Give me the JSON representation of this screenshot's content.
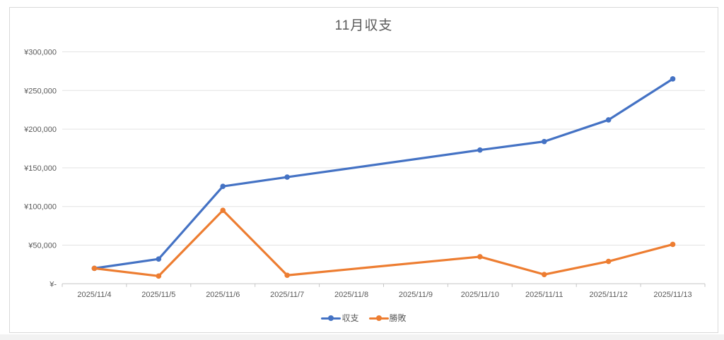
{
  "chart": {
    "title": "11月収支",
    "colors": {
      "series_balance": "#4472C4",
      "series_winloss": "#ED7D31",
      "axis_text": "#595959",
      "gridline": "#E3E3E3",
      "axis_line": "#C6C6C6",
      "frame_border": "#D9D9D9"
    }
  },
  "chart_data": {
    "type": "line",
    "title": "11月収支",
    "categories": [
      "2025/11/4",
      "2025/11/5",
      "2025/11/6",
      "2025/11/7",
      "2025/11/8",
      "2025/11/9",
      "2025/11/10",
      "2025/11/11",
      "2025/11/12",
      "2025/11/13"
    ],
    "series": [
      {
        "name": "収支",
        "color": "#4472C4",
        "values": [
          20000,
          32000,
          126000,
          138000,
          null,
          null,
          173000,
          184000,
          212000,
          265000
        ]
      },
      {
        "name": "勝敗",
        "color": "#ED7D31",
        "values": [
          20000,
          10000,
          95000,
          11000,
          null,
          null,
          35000,
          12000,
          29000,
          51000
        ]
      }
    ],
    "ylim": [
      0,
      300000
    ],
    "ytick_step": 50000,
    "ytick_labels": [
      "¥-",
      "¥50,000",
      "¥100,000",
      "¥150,000",
      "¥200,000",
      "¥250,000",
      "¥300,000"
    ],
    "xlabel": "",
    "ylabel": "",
    "grid": true,
    "legend_position": "bottom",
    "gap_note": "no markers on 2025/11/8 and 2025/11/9; lines connect straight across the gap"
  }
}
